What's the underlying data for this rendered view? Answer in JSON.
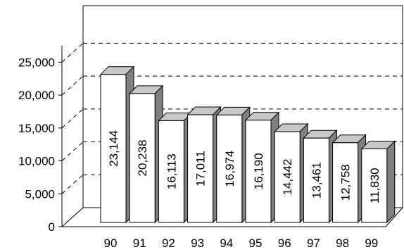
{
  "chart_data": {
    "type": "bar",
    "categories": [
      "90",
      "91",
      "92",
      "93",
      "94",
      "95",
      "96",
      "97",
      "98",
      "99"
    ],
    "values": [
      23144,
      20238,
      16113,
      17011,
      16974,
      16190,
      14442,
      13461,
      12758,
      11830
    ],
    "data_labels": [
      "23,144",
      "20,238",
      "16,113",
      "17,011",
      "16,974",
      "16,190",
      "14,442",
      "13,461",
      "12,758",
      "11,830"
    ],
    "y_ticks": [
      "0",
      "5,000",
      "10,000",
      "15,000",
      "20,000",
      "25,000"
    ],
    "ylim": [
      0,
      27500
    ],
    "grid": true,
    "style": "3d",
    "colors": {
      "bar_front": "#ffffff",
      "bar_top": "#c8c8c8",
      "bar_side": "#808080",
      "stroke": "#000000"
    }
  }
}
